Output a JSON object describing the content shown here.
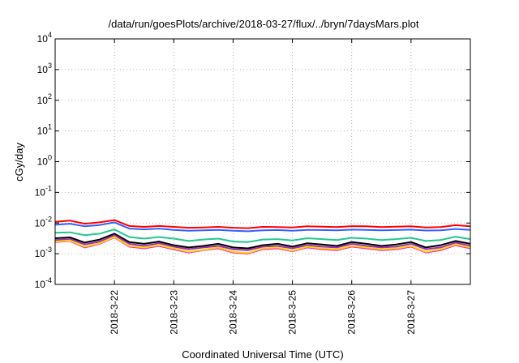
{
  "chart_data": {
    "type": "line",
    "title": "/data/run/goesPlots/archive/2018-03-27/flux/../bryn/7daysMars.plot",
    "xlabel": "Coordinated Universal Time (UTC)",
    "ylabel": "cGy/day",
    "yscale": "log",
    "ylim": [
      0.0001,
      10000
    ],
    "y_ticks": [
      {
        "value": 0.0001,
        "base": "10",
        "exp": "-4"
      },
      {
        "value": 0.001,
        "base": "10",
        "exp": "-3"
      },
      {
        "value": 0.01,
        "base": "10",
        "exp": "-2"
      },
      {
        "value": 0.1,
        "base": "10",
        "exp": "-1"
      },
      {
        "value": 1,
        "base": "10",
        "exp": "0"
      },
      {
        "value": 10,
        "base": "10",
        "exp": "1"
      },
      {
        "value": 100,
        "base": "10",
        "exp": "2"
      },
      {
        "value": 1000,
        "base": "10",
        "exp": "3"
      },
      {
        "value": 10000,
        "base": "10",
        "exp": "4"
      }
    ],
    "xlim": [
      "2018-03-21 00:00",
      "2018-03-28 00:00"
    ],
    "x_ticks": [
      "2018-3-22",
      "2018-3-23",
      "2018-3-24",
      "2018-3-25",
      "2018-3-26",
      "2018-3-27"
    ],
    "grid": true,
    "x": [
      "2018-03-21 00:00",
      "2018-03-21 06:00",
      "2018-03-21 12:00",
      "2018-03-21 18:00",
      "2018-03-22 00:00",
      "2018-03-22 06:00",
      "2018-03-22 12:00",
      "2018-03-22 18:00",
      "2018-03-23 00:00",
      "2018-03-23 06:00",
      "2018-03-23 12:00",
      "2018-03-23 18:00",
      "2018-03-24 00:00",
      "2018-03-24 06:00",
      "2018-03-24 12:00",
      "2018-03-24 18:00",
      "2018-03-25 00:00",
      "2018-03-25 06:00",
      "2018-03-25 12:00",
      "2018-03-25 18:00",
      "2018-03-26 00:00",
      "2018-03-26 06:00",
      "2018-03-26 12:00",
      "2018-03-26 18:00",
      "2018-03-27 00:00",
      "2018-03-27 06:00",
      "2018-03-27 12:00",
      "2018-03-27 18:00",
      "2018-03-28 00:00"
    ],
    "series": [
      {
        "color": "#ff0000",
        "values": [
          0.011,
          0.012,
          0.0095,
          0.0105,
          0.0125,
          0.008,
          0.0075,
          0.008,
          0.0075,
          0.007,
          0.0072,
          0.0075,
          0.007,
          0.0068,
          0.0075,
          0.0074,
          0.0072,
          0.0078,
          0.0076,
          0.0074,
          0.0079,
          0.0078,
          0.0074,
          0.0076,
          0.0078,
          0.0072,
          0.0074,
          0.0085,
          0.0078
        ]
      },
      {
        "color": "#3060ff",
        "values": [
          0.0088,
          0.0095,
          0.0078,
          0.0086,
          0.0105,
          0.0066,
          0.0062,
          0.0066,
          0.006,
          0.0056,
          0.0058,
          0.006,
          0.0056,
          0.0054,
          0.0058,
          0.0059,
          0.0056,
          0.006,
          0.0059,
          0.0058,
          0.0061,
          0.006,
          0.0058,
          0.0059,
          0.0061,
          0.0057,
          0.0058,
          0.0064,
          0.006
        ]
      },
      {
        "color": "#20c890",
        "values": [
          0.0048,
          0.005,
          0.004,
          0.0045,
          0.0062,
          0.0035,
          0.0031,
          0.0035,
          0.0031,
          0.0026,
          0.0029,
          0.0031,
          0.0025,
          0.0024,
          0.0029,
          0.003,
          0.0027,
          0.0032,
          0.003,
          0.0028,
          0.0033,
          0.0031,
          0.0028,
          0.003,
          0.0033,
          0.0026,
          0.0028,
          0.0036,
          0.003
        ]
      },
      {
        "color": "#000000",
        "values": [
          0.0032,
          0.0034,
          0.0023,
          0.0029,
          0.0045,
          0.0024,
          0.0021,
          0.0025,
          0.0019,
          0.0016,
          0.0018,
          0.0021,
          0.0016,
          0.0015,
          0.0019,
          0.0021,
          0.0017,
          0.0022,
          0.002,
          0.0018,
          0.0024,
          0.0021,
          0.0018,
          0.002,
          0.0024,
          0.0016,
          0.0019,
          0.0026,
          0.0021
        ]
      },
      {
        "color": "#9a30b0",
        "values": [
          0.0028,
          0.003,
          0.002,
          0.0025,
          0.004,
          0.0021,
          0.0018,
          0.0022,
          0.0017,
          0.0014,
          0.0016,
          0.0018,
          0.0014,
          0.0013,
          0.0017,
          0.0018,
          0.0015,
          0.0019,
          0.0017,
          0.0016,
          0.0021,
          0.0018,
          0.0016,
          0.0017,
          0.0021,
          0.0014,
          0.0016,
          0.0023,
          0.0018
        ]
      },
      {
        "color": "#ff20c8",
        "values": [
          0.0024,
          0.0026,
          0.0016,
          0.0021,
          0.0034,
          0.0017,
          0.0015,
          0.0018,
          0.0014,
          0.0011,
          0.0013,
          0.0015,
          0.0011,
          0.001,
          0.0014,
          0.0015,
          0.0012,
          0.0016,
          0.0014,
          0.0013,
          0.0017,
          0.0015,
          0.0013,
          0.0014,
          0.0017,
          0.0011,
          0.0013,
          0.0019,
          0.0015
        ]
      },
      {
        "color": "#ffd800",
        "values": [
          0.0025,
          0.0027,
          0.0017,
          0.0022,
          0.0035,
          0.0018,
          0.0016,
          0.0019,
          0.0015,
          0.00115,
          0.00135,
          0.0016,
          0.00115,
          0.00105,
          0.0015,
          0.0016,
          0.00125,
          0.0017,
          0.0015,
          0.0014,
          0.0018,
          0.0016,
          0.0014,
          0.0015,
          0.0018,
          0.00115,
          0.0014,
          0.002,
          0.0016
        ]
      }
    ]
  }
}
